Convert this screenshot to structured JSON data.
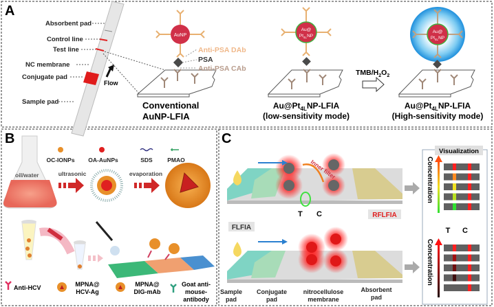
{
  "colors": {
    "red": "#e0202a",
    "np_red": "#d03048",
    "antibody": "#e8b070",
    "cab": "#a08878",
    "blue_glow": "#2a9be0",
    "teal": "#6fd0c0",
    "sand": "#d8cc90",
    "orange": "#e8902a"
  },
  "panel_a": {
    "label": "A",
    "strip_labels": [
      "Absorbent pad",
      "Control line",
      "Test line",
      "NC membrane",
      "Conjugate pad",
      "Sample pad"
    ],
    "flow": "Flow",
    "aunp": "AuNP",
    "legend": {
      "dab": "Anti-PSA DAb",
      "psa": "PSA",
      "cab": "Anti-PSA CAb"
    },
    "conventional": {
      "line1": "Conventional",
      "line2": "AuNP-LFIA"
    },
    "np_core": {
      "line1": "Au@",
      "line2a": "Pt",
      "line2sub": "4L",
      "line2b": "NP"
    },
    "low": {
      "name_a": "Au@Pt",
      "name_sub": "4L",
      "name_b": "NP-LFIA",
      "mode": "(low-sensitivity mode)"
    },
    "reaction": {
      "a": "TMB/H",
      "sub1": "2",
      "b": "O",
      "sub2": "2"
    },
    "high": {
      "name_a": "Au@Pt",
      "name_sub": "4L",
      "name_b": "NP-LFIA",
      "mode": "(High-sensitivity mode)"
    }
  },
  "panel_b": {
    "label": "B",
    "oil_water": "oil/water",
    "reagents": [
      "OC-IONPs",
      "OA-AuNPs",
      "SDS",
      "PMAO"
    ],
    "steps": [
      "ultrasonic",
      "evaporation"
    ],
    "legend": [
      {
        "lines": [
          "Anti-HCV"
        ]
      },
      {
        "lines": [
          "MPNA@",
          "HCV-Ag"
        ]
      },
      {
        "lines": [
          "MPNA@",
          "DIG-mAb"
        ]
      },
      {
        "lines": [
          "Goat anti-",
          "mouse-",
          "antibody"
        ]
      }
    ]
  },
  "panel_c": {
    "label": "C",
    "inner_filter": "Inner filter",
    "t": "T",
    "c": "C",
    "rflfia": "RFLFIA",
    "flfia": "FLFIA",
    "pads": [
      [
        "Sample",
        "pad"
      ],
      [
        "Conjugate",
        "pad"
      ],
      [
        "nitrocellulose",
        "membrane"
      ],
      [
        "Absorbent",
        "pad"
      ]
    ],
    "visualization": "Visualization",
    "concentration": "Concentration",
    "rflfia_t_colors": [
      "#ff2020",
      "#ff8a20",
      "#f0e020",
      "#b8e020",
      "#30e030"
    ],
    "flfia_t_colors": [
      "#ff2020",
      "#a01010",
      "#701010",
      "#401010",
      "#606060"
    ]
  }
}
